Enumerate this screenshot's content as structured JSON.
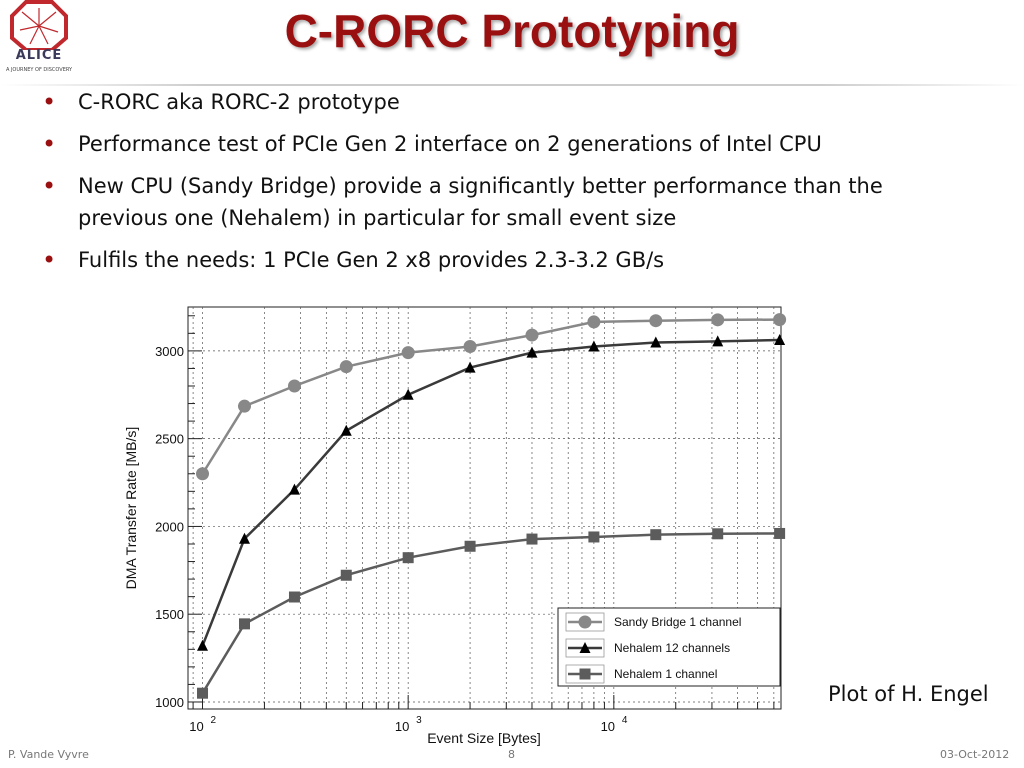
{
  "slide": {
    "title": "C-RORC Prototyping",
    "logo_text": "ALICE",
    "logo_subtext": "A JOURNEY OF DISCOVERY",
    "bullets": [
      "C-RORC aka RORC-2 prototype",
      "Performance test of PCIe Gen 2 interface on 2 generations of Intel CPU",
      "New CPU (Sandy Bridge) provide a significantly better performance than the previous one (Nehalem) in particular for small event size",
      "Fulfils the needs: 1 PCIe Gen 2 x8 provides 2.3-3.2 GB/s"
    ],
    "credit": "Plot of H. Engel",
    "footer": {
      "author": "P. Vande Vyvre",
      "page": "8",
      "date": "03-Oct-2012"
    }
  },
  "chart_data": {
    "type": "line",
    "xlabel": "Event Size [Bytes]",
    "ylabel": "DMA Transfer Rate [MB/s]",
    "xscale": "log",
    "xlim": [
      85,
      65000
    ],
    "ylim": [
      960,
      3250
    ],
    "grid": true,
    "legend": "bottom-right",
    "xticks": [
      {
        "value": 100,
        "base": "10",
        "exp": "2"
      },
      {
        "value": 1000,
        "base": "10",
        "exp": "3"
      },
      {
        "value": 10000,
        "base": "10",
        "exp": "4"
      }
    ],
    "yticks": [
      1000,
      1500,
      2000,
      2500,
      3000
    ],
    "x": [
      100,
      160,
      280,
      500,
      1000,
      2000,
      4000,
      8000,
      16000,
      32000,
      64000
    ],
    "series": [
      {
        "name": "Sandy Bridge 1 channel",
        "marker": "circle",
        "color": "#888888",
        "values": [
          2300,
          2685,
          2800,
          2910,
          2990,
          3025,
          3090,
          3165,
          3172,
          3177,
          3178
        ]
      },
      {
        "name": "Nehalem 12 channels",
        "marker": "triangle",
        "color": "#3a3a3a",
        "values": [
          1320,
          1930,
          2210,
          2545,
          2750,
          2905,
          2990,
          3025,
          3048,
          3054,
          3062
        ]
      },
      {
        "name": "Nehalem 1 channel",
        "marker": "square",
        "color": "#5c5c5c",
        "values": [
          1050,
          1445,
          1598,
          1722,
          1822,
          1887,
          1928,
          1940,
          1953,
          1958,
          1960
        ]
      }
    ]
  }
}
